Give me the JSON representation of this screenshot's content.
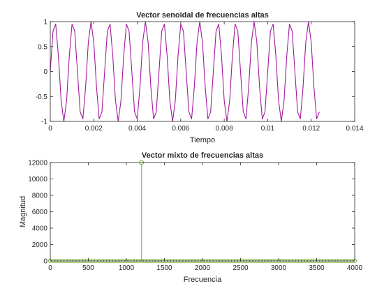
{
  "chart_data": [
    {
      "type": "line",
      "title": "Vector senoidal de frecuencias altas",
      "xlabel": "Tiempo",
      "ylabel": "",
      "xlim": [
        0,
        0.014
      ],
      "ylim": [
        -1,
        1
      ],
      "xticks": [
        0,
        0.002,
        0.004,
        0.006,
        0.008,
        0.01,
        0.012,
        0.014
      ],
      "xtick_labels": [
        "0",
        "0.002",
        "0.004",
        "0.006",
        "0.008",
        "0.01",
        "0.012",
        "0.014"
      ],
      "yticks": [
        -1,
        -0.5,
        0,
        0.5,
        1
      ],
      "ytick_labels": [
        "-1",
        "-0.5",
        "0",
        "0.5",
        "1"
      ],
      "grid": false,
      "series": [
        {
          "color": "#a3199e",
          "frequency_hz": 1200,
          "sample_rate_hz": 8000,
          "num_samples": 100,
          "amplitude": 1
        }
      ]
    },
    {
      "type": "stem",
      "title": "Vector mixto de frecuencias altas",
      "xlabel": "Frecuencia",
      "ylabel": "Magnitud",
      "xlim": [
        0,
        4000
      ],
      "ylim": [
        0,
        12000
      ],
      "xticks": [
        0,
        500,
        1000,
        1500,
        2000,
        2500,
        3000,
        3500,
        4000
      ],
      "xtick_labels": [
        "0",
        "500",
        "1000",
        "1500",
        "2000",
        "2500",
        "3000",
        "3500",
        "4000"
      ],
      "yticks": [
        0,
        2000,
        4000,
        6000,
        8000,
        10000,
        12000
      ],
      "ytick_labels": [
        "0",
        "2000",
        "4000",
        "6000",
        "8000",
        "10000",
        "12000"
      ],
      "grid": false,
      "series": [
        {
          "color": "#77ac30",
          "baseline_points": {
            "start": 0,
            "end": 4000,
            "step": 40,
            "value": 0
          },
          "peaks": [
            {
              "x": 1200,
              "y": 12000
            }
          ]
        }
      ]
    }
  ]
}
